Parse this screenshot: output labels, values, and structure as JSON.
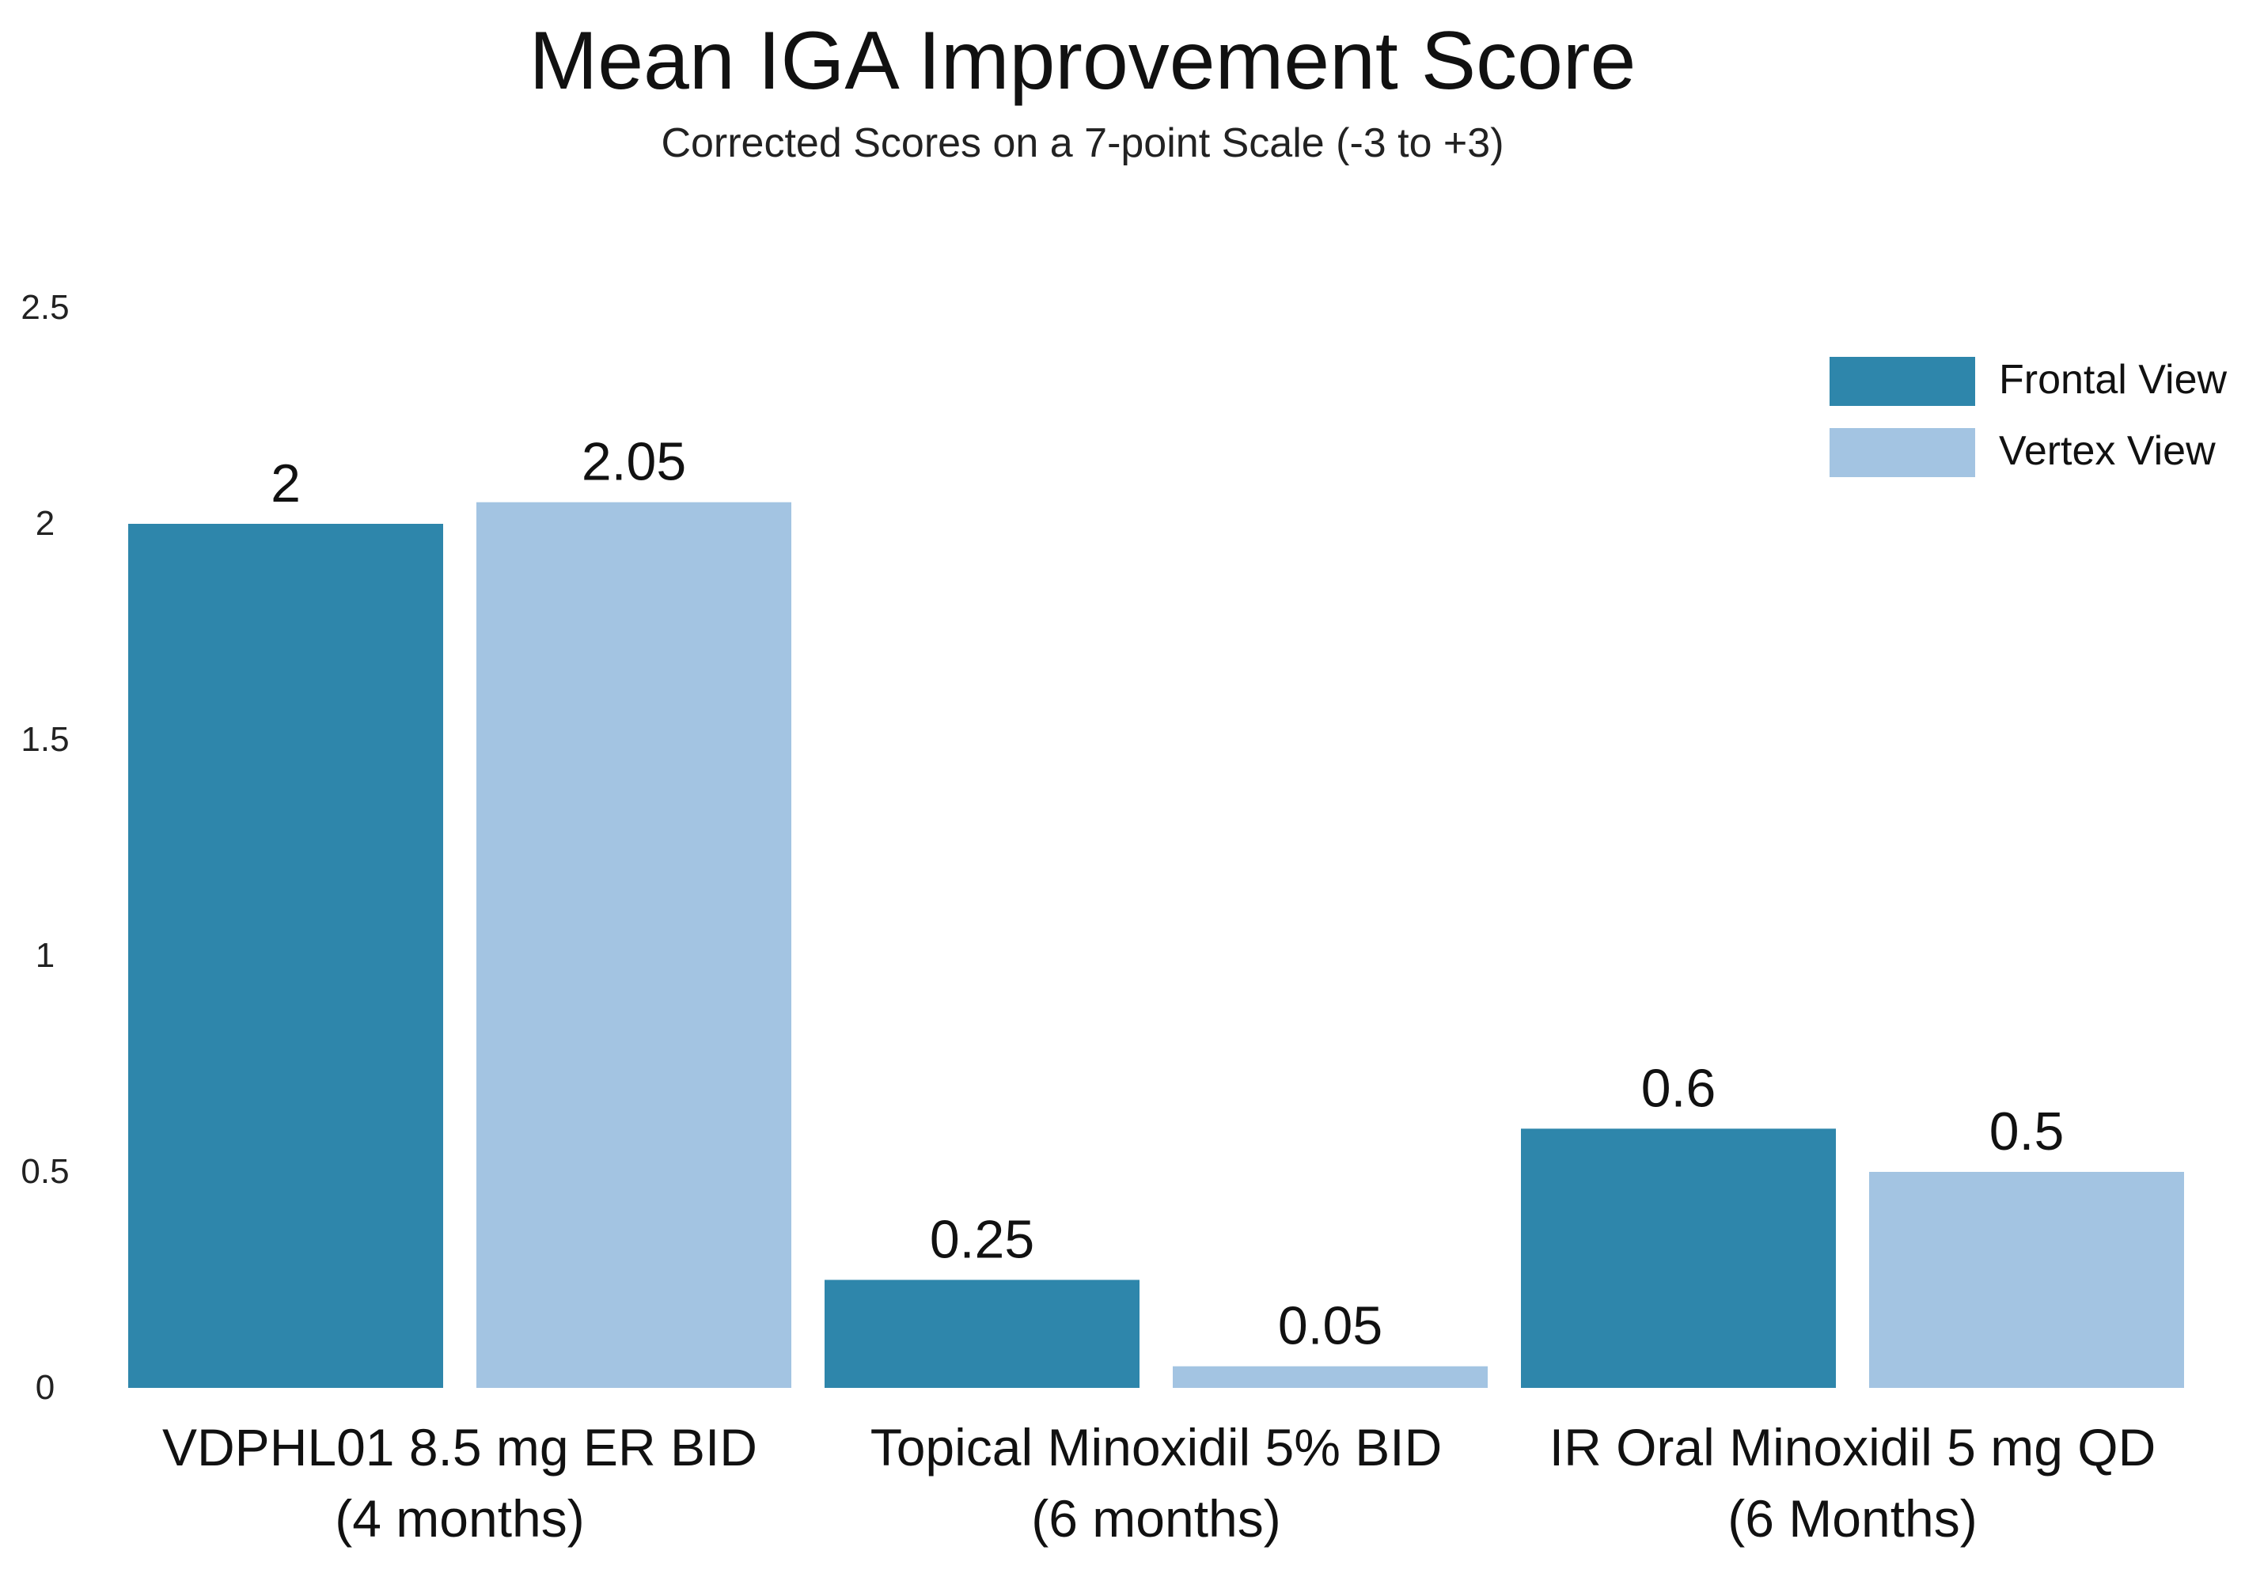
{
  "chart_data": {
    "type": "bar",
    "title": "Mean IGA Improvement Score",
    "subtitle": "Corrected Scores on a 7-point Scale (-3 to +3)",
    "categories": [
      [
        "VDPHL01 8.5 mg ER BID",
        "(4 months)"
      ],
      [
        "Topical Minoxidil 5% BID",
        "(6 months)"
      ],
      [
        "IR Oral Minoxidil 5 mg QD",
        "(6 Months)"
      ]
    ],
    "series": [
      {
        "name": "Frontal View",
        "color": "#2e86ab",
        "values": [
          2,
          0.25,
          0.6
        ],
        "labels": [
          "2",
          "0.25",
          "0.6"
        ]
      },
      {
        "name": "Vertex View",
        "color": "#a3c4e2",
        "values": [
          2.05,
          0.05,
          0.5
        ],
        "labels": [
          "2.05",
          "0.05",
          "0.5"
        ]
      }
    ],
    "yticks": [
      "0",
      "0.5",
      "1",
      "1.5",
      "2",
      "2.5"
    ],
    "ylim": [
      0,
      2.5
    ],
    "grid": false,
    "legend_position": "top-right",
    "xlabel": "",
    "ylabel": ""
  }
}
